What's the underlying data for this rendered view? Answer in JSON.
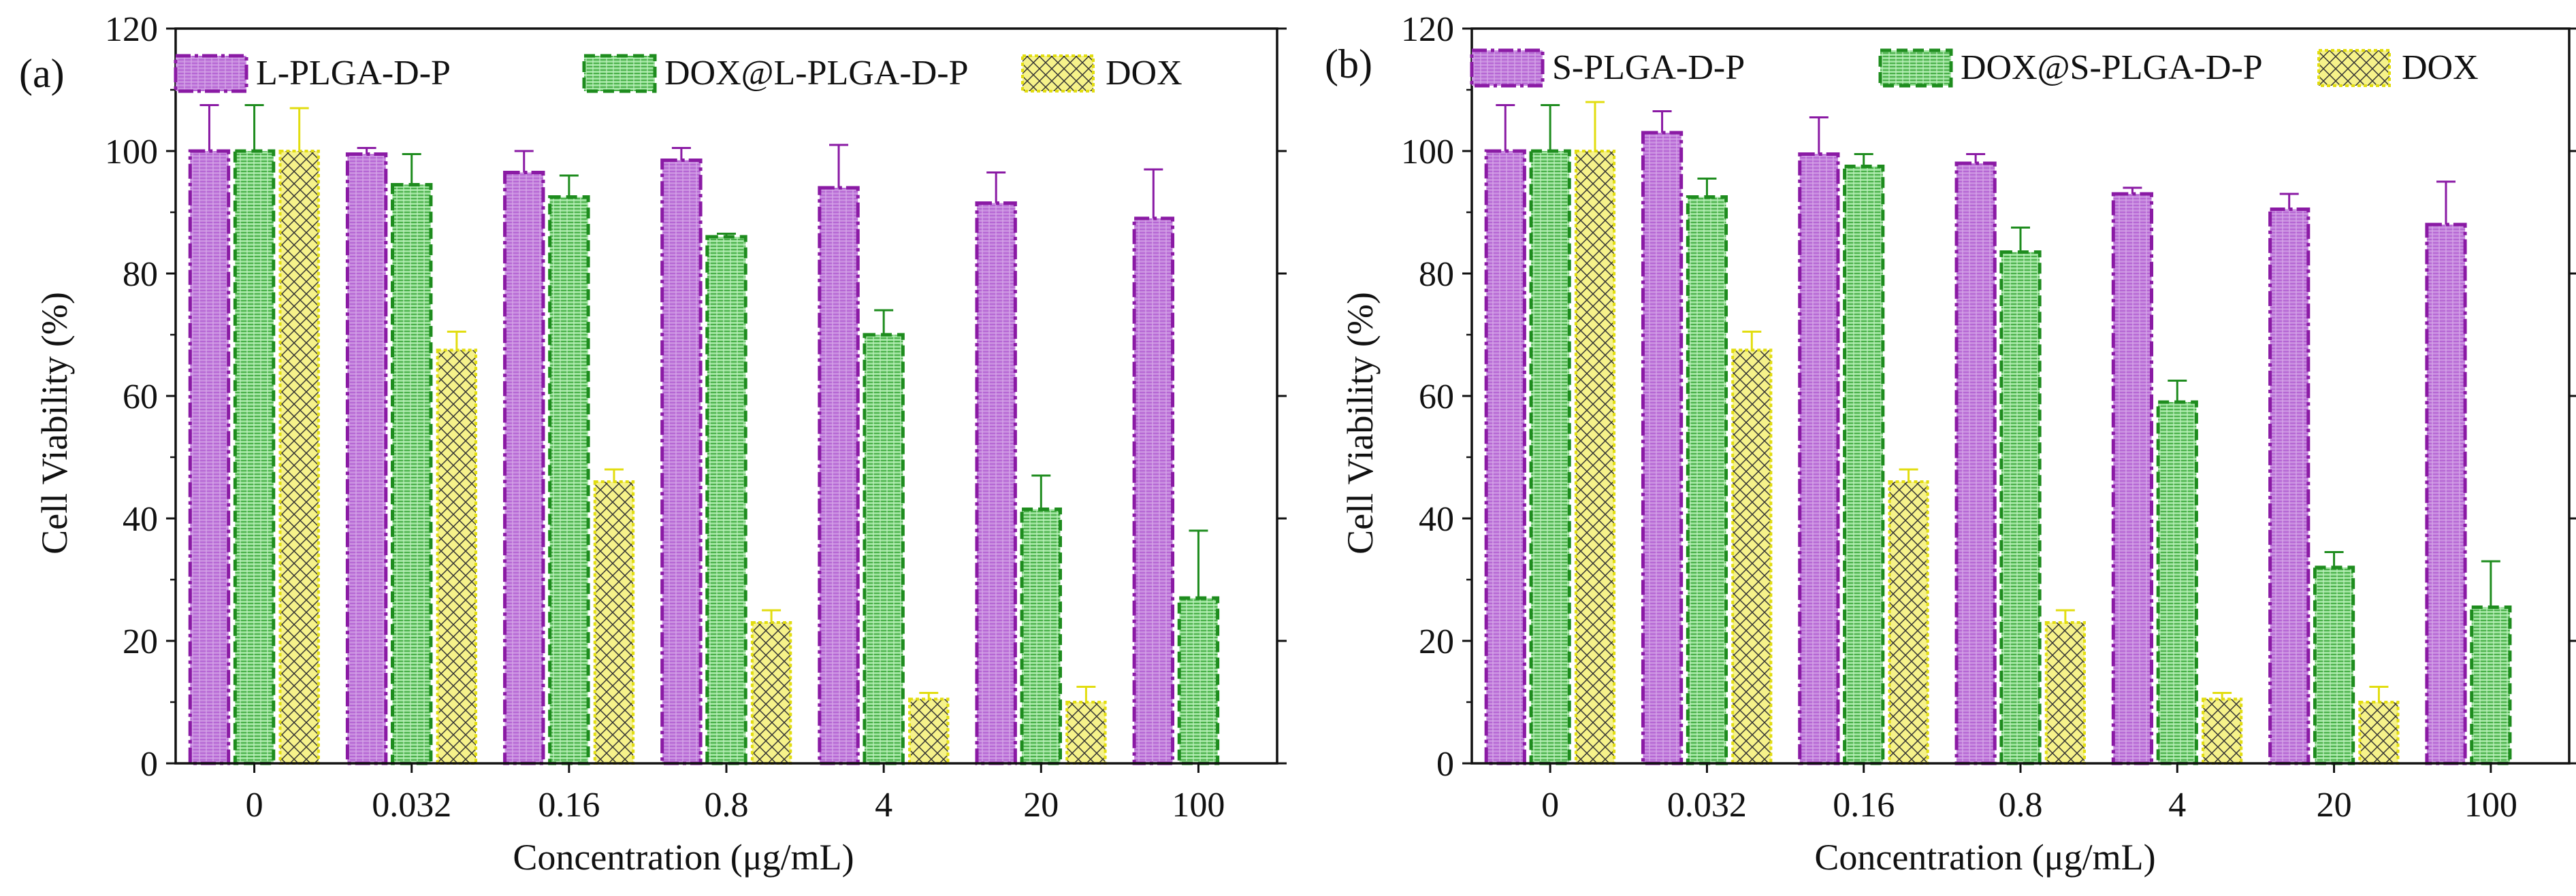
{
  "colors": {
    "s0_fill": "#c98ee0",
    "s0_stroke": "#8a1aa4",
    "s0_pattern": "#b05ad0",
    "s1_fill": "#9ee39e",
    "s1_stroke": "#1e8c1e",
    "s1_pattern": "#2ea02e",
    "s2_fill": "#f6f28a",
    "s2_stroke": "#e2dd10",
    "s2_pattern": "#222222"
  },
  "chart_data": [
    {
      "type": "bar",
      "panel_label": "(a)",
      "xlabel": "Concentration (μg/mL)",
      "ylabel": "Cell Viability (%)",
      "ylim": [
        0,
        120
      ],
      "yticks": [
        "0",
        "20",
        "40",
        "60",
        "80",
        "100",
        "120"
      ],
      "categories": [
        "0",
        "0.032",
        "0.16",
        "0.8",
        "4",
        "20",
        "100"
      ],
      "series": [
        {
          "name": "L-PLGA-D-P",
          "values": [
            100,
            99.5,
            96.5,
            98.5,
            94,
            91.5,
            89
          ],
          "errors": [
            7.5,
            1,
            3.5,
            2,
            7,
            5,
            8
          ]
        },
        {
          "name": "DOX@L-PLGA-D-P",
          "values": [
            100,
            94.5,
            92.5,
            86,
            70,
            41.5,
            27
          ],
          "errors": [
            7.5,
            5,
            3.5,
            0.5,
            4,
            5.5,
            11
          ]
        },
        {
          "name": "DOX",
          "values": [
            100,
            67.5,
            46,
            23,
            10.5,
            10,
            null
          ],
          "errors": [
            7,
            3,
            2,
            2,
            1,
            2.5,
            null
          ]
        }
      ]
    },
    {
      "type": "bar",
      "panel_label": "(b)",
      "xlabel": "Concentration (μg/mL)",
      "ylabel": "Cell Viability (%)",
      "ylim": [
        0,
        120
      ],
      "yticks": [
        "0",
        "20",
        "40",
        "60",
        "80",
        "100",
        "120"
      ],
      "categories": [
        "0",
        "0.032",
        "0.16",
        "0.8",
        "4",
        "20",
        "100"
      ],
      "series": [
        {
          "name": "S-PLGA-D-P",
          "values": [
            100,
            103,
            99.5,
            98,
            93,
            90.5,
            88
          ],
          "errors": [
            7.5,
            3.5,
            6,
            1.5,
            1,
            2.5,
            7
          ]
        },
        {
          "name": "DOX@S-PLGA-D-P",
          "values": [
            100,
            92.5,
            97.5,
            83.5,
            59,
            32,
            25.5
          ],
          "errors": [
            7.5,
            3,
            2,
            4,
            3.5,
            2.5,
            7.5
          ]
        },
        {
          "name": "DOX",
          "values": [
            100,
            67.5,
            46,
            23,
            10.5,
            10,
            null
          ],
          "errors": [
            8,
            3,
            2,
            2,
            1,
            2.5,
            null
          ]
        }
      ]
    }
  ]
}
